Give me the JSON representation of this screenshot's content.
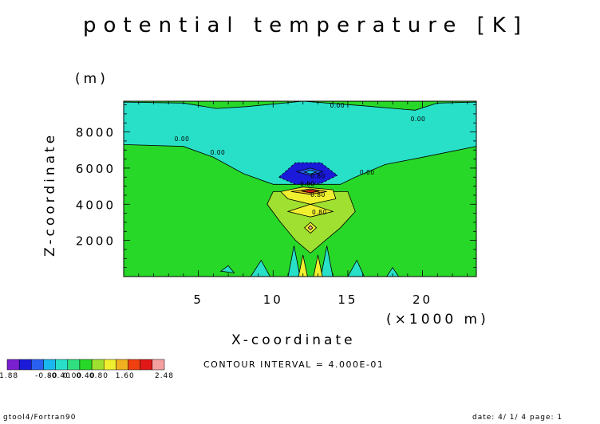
{
  "chart_data": {
    "type": "heatmap",
    "title": "potential temperature [K]",
    "xlabel": "X-coordinate",
    "ylabel": "Z-coordinate",
    "x_unit": "(×1000 m)",
    "y_unit": "(m)",
    "xlim": [
      0,
      23.6
    ],
    "ylim": [
      0,
      9700
    ],
    "x_ticks": [
      5,
      10,
      15,
      20
    ],
    "y_ticks": [
      2000,
      4000,
      6000,
      8000
    ],
    "contour_interval_text": "CONTOUR INTERVAL = 4.000E-01",
    "contour_line_labels": [
      "0.00",
      "0.00",
      "0.00",
      "0.00",
      "0.00",
      "0.80",
      "0.80",
      "0.80",
      "0.80"
    ],
    "colorbar": {
      "levels": [
        -1.88,
        -1.6,
        -1.2,
        -0.8,
        -0.4,
        0,
        0.4,
        0.8,
        1.2,
        1.6,
        2.0,
        2.4,
        2.48
      ],
      "tick_labels": [
        "-1.88",
        "-0.40",
        "0.40",
        "0.80",
        "1.60",
        "2.48"
      ],
      "overlap_labels": [
        "-0.80",
        "0.00"
      ],
      "colors": [
        "#7a1fd0",
        "#1a1ad8",
        "#2a60f0",
        "#1ab8f0",
        "#28e0c8",
        "#30e080",
        "#28d828",
        "#a0e030",
        "#f0f030",
        "#f0b020",
        "#f04010",
        "#e01818",
        "#f4a0a0"
      ]
    },
    "background_value_color": "#28d828",
    "region_colors": {
      "cool_cap": "#28e0c8",
      "deep_cool": "#1a1ad8",
      "mid_cool": "#2a60f0",
      "light_cool": "#1ab8f0",
      "warm_band": "#a0e030",
      "hot_core": "#e01818",
      "orange_core": "#f0b020",
      "yellow_band": "#f0f030",
      "pink_max": "#f4a0a0"
    }
  },
  "footer": {
    "left": "gtool4/Fortran90",
    "right": "date: 4/ 1/ 4 page: 1"
  }
}
